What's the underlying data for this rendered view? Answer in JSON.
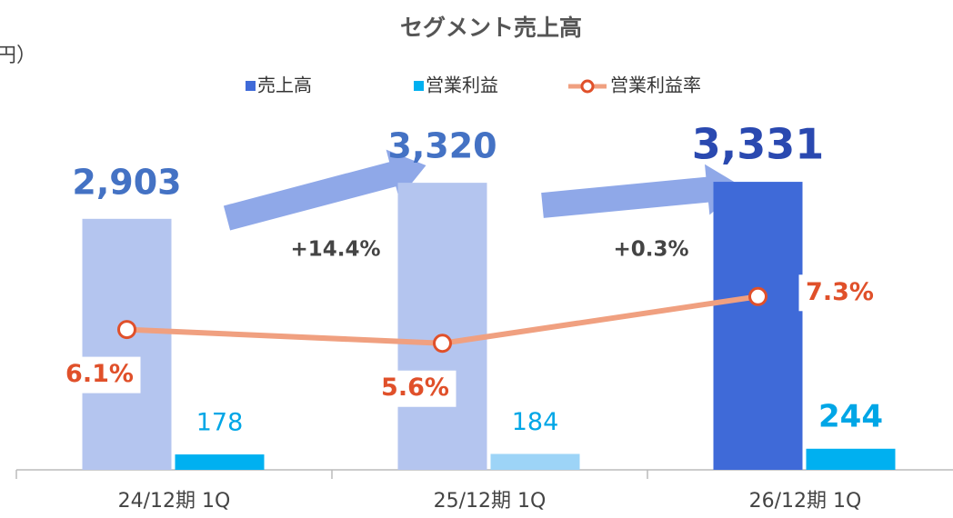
{
  "chart_data": {
    "type": "bar",
    "title": "セグメント売上高",
    "unit_label": "円）",
    "categories": [
      "24/12期  1Q",
      "25/12期  1Q",
      "26/12期  1Q"
    ],
    "ylim": [
      0,
      3500
    ],
    "y2lim": [
      1,
      12
    ],
    "legend": "top",
    "series": [
      {
        "name": "売上高",
        "type": "bar",
        "color": "#3f6ad8",
        "colors": [
          "#b4c5ef",
          "#b4c5ef",
          "#3f6ad8"
        ],
        "label_colors": [
          "#4472c4",
          "#4472c4",
          "#2a49b0"
        ],
        "values": [
          2903,
          3320,
          3331
        ],
        "value_labels": [
          "2,903",
          "3,320",
          "3,331"
        ]
      },
      {
        "name": "営業利益",
        "type": "bar",
        "color": "#00b0f0",
        "colors": [
          "#00b0f0",
          "#9dd4f7",
          "#00b0f0"
        ],
        "label_colors": [
          "#00a6e6",
          "#00a6e6",
          "#00a6e6"
        ],
        "values": [
          178,
          184,
          244
        ]
      },
      {
        "name": "営業利益率",
        "type": "line",
        "axis": "y2",
        "color": "#f0a080",
        "marker_color": "#e0502a",
        "values": [
          6.1,
          5.6,
          7.3
        ],
        "value_labels": [
          "6.1%",
          "5.6%",
          "7.3%"
        ]
      }
    ],
    "annotations": [
      {
        "text": "+14.4%"
      },
      {
        "text": "+0.3%"
      }
    ]
  }
}
